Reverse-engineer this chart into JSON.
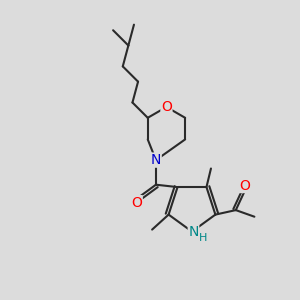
{
  "bg_color": "#dcdcdc",
  "bond_color": "#2a2a2a",
  "bond_width": 1.5,
  "atom_colors": {
    "O": "#ff0000",
    "N_morph": "#0000cc",
    "N_pyr": "#008888",
    "C": "#2a2a2a"
  },
  "font_size_hetero": 10,
  "font_size_H": 8,
  "xlim": [
    0,
    10
  ],
  "ylim": [
    0,
    10
  ]
}
